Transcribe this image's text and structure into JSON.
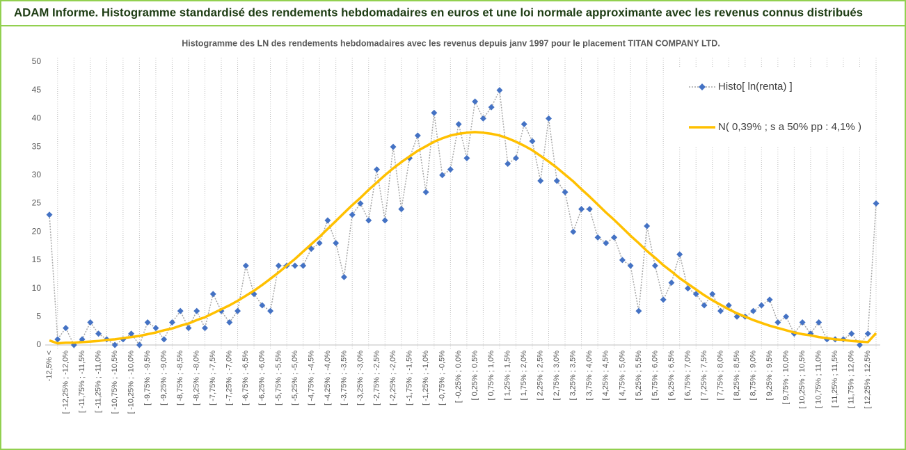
{
  "chart_data": {
    "type": "line",
    "title": "ADAM Informe. Histogramme standardisé des rendements hebdomadaires en euros et une loi normale approximante avec les revenus connus distribués",
    "subtitle": "Histogramme des LN des rendements hebdomadaires avec les revenus depuis janv 1997 pour le placement TITAN COMPANY LTD.",
    "categories": [
      "-12,5% <",
      null,
      "[ -12,25% ; -12,0%",
      null,
      "[ -11,75% ; -11,5%",
      null,
      "[ -11,25% ; -11,0%",
      null,
      "[ -10,75% ; -10,5%",
      null,
      "[ -10,25% ; -10,0%",
      null,
      "[ -9,75% ; -9,5%",
      null,
      "[ -9,25% ; -9,0%",
      null,
      "[ -8,75% ; -8,5%",
      null,
      "[ -8,25% ; -8,0%",
      null,
      "[ -7,75% ; -7,5%",
      null,
      "[ -7,25% ; -7,0%",
      null,
      "[ -6,75% ; -6,5%",
      null,
      "[ -6,25% ; -6,0%",
      null,
      "[ -5,75% ; -5,5%",
      null,
      "[ -5,25% ; -5,0%",
      null,
      "[ -4,75% ; -4,5%",
      null,
      "[ -4,25% ; -4,0%",
      null,
      "[ -3,75% ; -3,5%",
      null,
      "[ -3,25% ; -3,0%",
      null,
      "[ -2,75% ; -2,5%",
      null,
      "[ -2,25% ; -2,0%",
      null,
      "[ -1,75% ; -1,5%",
      null,
      "[ -1,25% ; -1,0%",
      null,
      "[ -0,75% ; -0,5%",
      null,
      "[ -0,25% ; 0,0%",
      null,
      "[ 0,25% ; 0,5%",
      null,
      "[ 0,75% ; 1,0%",
      null,
      "[ 1,25% ; 1,5%",
      null,
      "[ 1,75% ; 2,0%",
      null,
      "[ 2,25% ; 2,5%",
      null,
      "[ 2,75% ; 3,0%",
      null,
      "[ 3,25% ; 3,5%",
      null,
      "[ 3,75% ; 4,0%",
      null,
      "[ 4,25% ; 4,5%",
      null,
      "[ 4,75% ; 5,0%",
      null,
      "[ 5,25% ; 5,5%",
      null,
      "[ 5,75% ; 6,0%",
      null,
      "[ 6,25% ; 6,5%",
      null,
      "[ 6,75% ; 7,0%",
      null,
      "[ 7,25% ; 7,5%",
      null,
      "[ 7,75% ; 8,0%",
      null,
      "[ 8,25% ; 8,5%",
      null,
      "[ 8,75% ; 9,0%",
      null,
      "[ 9,25% ; 9,5%",
      null,
      "[ 9,75% ; 10,0%",
      null,
      "[ 10,25% ; 10,5%",
      null,
      "[ 10,75% ; 11,0%",
      null,
      "[ 11,25% ; 11,5%",
      null,
      "[ 11,75% ; 12,0%",
      null,
      "[ 12,25% ; 12,5%",
      null
    ],
    "series": [
      {
        "name": "Histo[ ln(renta) ]",
        "color": "#4472c4",
        "line_color": "#a6a6a6",
        "marker": "diamond",
        "values": [
          23,
          1,
          3,
          0,
          1,
          4,
          2,
          1,
          0,
          1,
          2,
          0,
          4,
          3,
          1,
          4,
          6,
          3,
          6,
          3,
          9,
          6,
          4,
          6,
          14,
          9,
          7,
          6,
          14,
          14,
          14,
          14,
          17,
          18,
          22,
          18,
          12,
          23,
          25,
          22,
          31,
          22,
          35,
          24,
          33,
          37,
          27,
          41,
          30,
          31,
          39,
          33,
          43,
          40,
          42,
          45,
          32,
          33,
          39,
          36,
          29,
          40,
          29,
          27,
          20,
          24,
          24,
          19,
          18,
          19,
          15,
          14,
          6,
          21,
          14,
          8,
          11,
          16,
          10,
          9,
          7,
          9,
          6,
          7,
          5,
          5,
          6,
          7,
          8,
          4,
          5,
          2,
          4,
          2,
          4,
          1,
          1,
          1,
          2,
          0,
          2,
          25
        ]
      },
      {
        "name": "N( 0,39% ; s a 50% pp : 4,1% )",
        "color": "#ffc000",
        "marker": "none",
        "values": [
          0.8,
          0.3,
          0.4,
          0.4,
          0.5,
          0.6,
          0.7,
          0.9,
          1.0,
          1.2,
          1.4,
          1.6,
          1.9,
          2.2,
          2.6,
          2.9,
          3.4,
          3.8,
          4.4,
          4.9,
          5.6,
          6.3,
          7.0,
          7.8,
          8.7,
          9.6,
          10.6,
          11.7,
          12.8,
          14.0,
          15.2,
          16.5,
          17.8,
          19.1,
          20.5,
          21.9,
          23.3,
          24.7,
          26.0,
          27.4,
          28.7,
          30.0,
          31.2,
          32.3,
          33.3,
          34.3,
          35.1,
          35.9,
          36.5,
          37.0,
          37.3,
          37.5,
          37.6,
          37.5,
          37.3,
          37.0,
          36.5,
          35.9,
          35.2,
          34.4,
          33.4,
          32.4,
          31.3,
          30.1,
          28.9,
          27.5,
          26.2,
          24.8,
          23.4,
          22.1,
          20.7,
          19.3,
          18.0,
          16.6,
          15.4,
          14.1,
          13.0,
          11.8,
          10.8,
          9.8,
          8.8,
          7.9,
          7.1,
          6.3,
          5.6,
          5.0,
          4.4,
          3.9,
          3.4,
          3.0,
          2.6,
          2.2,
          1.9,
          1.7,
          1.4,
          1.2,
          1.0,
          0.9,
          0.7,
          0.6,
          0.5,
          2.1
        ]
      }
    ],
    "ylim": [
      0,
      50
    ],
    "yticks": [
      0,
      5,
      10,
      15,
      20,
      25,
      30,
      35,
      40,
      45,
      50
    ],
    "grid": "x",
    "legend": "top-right"
  }
}
